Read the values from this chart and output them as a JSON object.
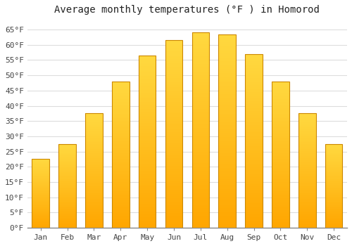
{
  "title": "Average monthly temperatures (°F ) in Homorod",
  "months": [
    "Jan",
    "Feb",
    "Mar",
    "Apr",
    "May",
    "Jun",
    "Jul",
    "Aug",
    "Sep",
    "Oct",
    "Nov",
    "Dec"
  ],
  "values": [
    22.5,
    27.5,
    37.5,
    48.0,
    56.5,
    61.5,
    64.0,
    63.5,
    57.0,
    48.0,
    37.5,
    27.5
  ],
  "bar_color": "#FFAA00",
  "bar_edge_color": "#CC8800",
  "background_color": "#ffffff",
  "plot_bg_color": "#ffffff",
  "grid_color": "#dddddd",
  "ylim": [
    0,
    68
  ],
  "yticks": [
    0,
    5,
    10,
    15,
    20,
    25,
    30,
    35,
    40,
    45,
    50,
    55,
    60,
    65
  ],
  "title_fontsize": 10,
  "tick_fontsize": 8,
  "tick_color": "#444444",
  "title_color": "#222222"
}
